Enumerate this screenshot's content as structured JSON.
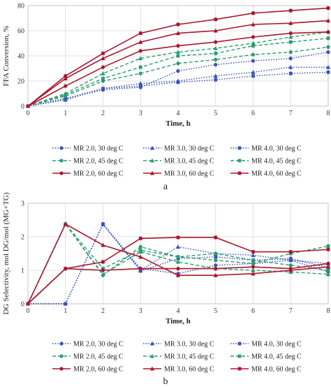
{
  "chart_data": [
    {
      "type": "line",
      "panel_label": "a",
      "xlabel": "Time, h",
      "ylabel": "FFA Conversion, %",
      "xlim": [
        0,
        8
      ],
      "ylim": [
        0,
        80
      ],
      "x": [
        0,
        1,
        2,
        3,
        4,
        5,
        6,
        7,
        8
      ],
      "x_ticks": [
        "0",
        "1",
        "2",
        "3",
        "4",
        "5",
        "6",
        "7",
        "8"
      ],
      "y_ticks": [
        "0",
        "20",
        "40",
        "60",
        "80"
      ],
      "y_tick_values": [
        0,
        20,
        40,
        60,
        80
      ],
      "grid": "horizontal and vertical",
      "legend": "bottom",
      "series": [
        {
          "name": "MR 2.0, 30 deg C",
          "color": "#3a53c0",
          "dash": "dotted",
          "marker": "circle",
          "values": [
            0,
            6,
            13,
            15,
            28,
            33,
            36,
            38,
            43
          ]
        },
        {
          "name": "MR 3.0, 30 deg C",
          "color": "#3a53c0",
          "dash": "dotted",
          "marker": "triangle",
          "values": [
            0,
            5,
            14,
            18,
            20,
            24,
            27,
            31,
            31
          ]
        },
        {
          "name": "MR 4.0, 30 deg C",
          "color": "#3a53c0",
          "dash": "dotted",
          "marker": "square",
          "values": [
            0,
            6,
            14,
            16,
            19,
            21,
            24,
            26,
            27
          ]
        },
        {
          "name": "MR 2.0, 45 deg C",
          "color": "#2a9d6f",
          "dash": "dashed",
          "marker": "circle",
          "values": [
            0,
            8,
            20,
            26,
            34,
            37,
            41,
            43,
            47
          ]
        },
        {
          "name": "MR 3.0, 45 deg C",
          "color": "#2a9d6f",
          "dash": "dashed",
          "marker": "triangle",
          "values": [
            0,
            10,
            26,
            38,
            43,
            46,
            50,
            55,
            59
          ]
        },
        {
          "name": "MR 4.0, 45 deg C",
          "color": "#2a9d6f",
          "dash": "dashed",
          "marker": "square",
          "values": [
            0,
            9,
            22,
            31,
            40,
            42,
            48,
            51,
            54
          ]
        },
        {
          "name": "MR 2.0, 60 deg C",
          "color": "#a8182c",
          "dash": "solid",
          "marker": "circle",
          "values": [
            0,
            16,
            31,
            44,
            48,
            51,
            55,
            58,
            59
          ]
        },
        {
          "name": "MR 3.0, 60 deg C",
          "color": "#a8182c",
          "dash": "solid",
          "marker": "triangle",
          "values": [
            0,
            22,
            38,
            51,
            58,
            60,
            65,
            66,
            68
          ]
        },
        {
          "name": "MR 4.0, 60 deg C",
          "color": "#a8182c",
          "dash": "solid",
          "marker": "square",
          "values": [
            0,
            24,
            42,
            58,
            65,
            69,
            74,
            76,
            78
          ]
        }
      ]
    },
    {
      "type": "line",
      "panel_label": "b",
      "xlabel": "Time, h",
      "ylabel": "DG Selectivity, mol DG/mol (MG+TG)",
      "xlim": [
        0,
        8
      ],
      "ylim": [
        0,
        3
      ],
      "x": [
        0,
        1,
        2,
        3,
        4,
        5,
        6,
        7,
        8
      ],
      "x_ticks": [
        "0",
        "1",
        "2",
        "3",
        "4",
        "5",
        "6",
        "7",
        "8"
      ],
      "y_ticks": [
        "0",
        "1",
        "2",
        "3"
      ],
      "y_tick_values": [
        0,
        1,
        2,
        3
      ],
      "grid": "horizontal and vertical",
      "legend": "bottom",
      "series": [
        {
          "name": "MR 2.0, 30 deg C",
          "color": "#3a53c0",
          "dash": "dotted",
          "marker": "circle",
          "values": [
            0,
            0,
            2.38,
            1.05,
            0.9,
            1.15,
            1.2,
            1.3,
            0.95
          ]
        },
        {
          "name": "MR 3.0, 30 deg C",
          "color": "#3a53c0",
          "dash": "dotted",
          "marker": "triangle",
          "values": [
            0,
            0,
            2.37,
            1.0,
            1.7,
            1.5,
            1.45,
            1.3,
            1.2
          ]
        },
        {
          "name": "MR 4.0, 30 deg C",
          "color": "#3a53c0",
          "dash": "dotted",
          "marker": "square",
          "values": [
            0,
            0,
            2.38,
            0.98,
            1.35,
            1.4,
            1.3,
            1.35,
            1.08
          ]
        },
        {
          "name": "MR 2.0, 45 deg C",
          "color": "#2a9d6f",
          "dash": "dashed",
          "marker": "circle",
          "values": [
            0,
            2.38,
            0.85,
            1.7,
            1.4,
            1.5,
            1.3,
            1.15,
            1.0
          ]
        },
        {
          "name": "MR 3.0, 45 deg C",
          "color": "#2a9d6f",
          "dash": "dashed",
          "marker": "triangle",
          "values": [
            0,
            2.38,
            0.88,
            1.55,
            1.25,
            1.05,
            1.0,
            0.95,
            0.88
          ]
        },
        {
          "name": "MR 4.0, 45 deg C",
          "color": "#2a9d6f",
          "dash": "dashed",
          "marker": "square",
          "values": [
            0,
            2.38,
            1.05,
            1.6,
            1.4,
            1.3,
            1.2,
            1.5,
            1.72
          ]
        },
        {
          "name": "MR 2.0, 60 deg C",
          "color": "#a8182c",
          "dash": "solid",
          "marker": "circle",
          "values": [
            0,
            1.05,
            1.0,
            1.05,
            1.05,
            1.05,
            1.1,
            1.05,
            1.2
          ]
        },
        {
          "name": "MR 3.0, 60 deg C",
          "color": "#a8182c",
          "dash": "solid",
          "marker": "triangle",
          "values": [
            0,
            2.38,
            1.75,
            1.4,
            0.85,
            0.85,
            0.9,
            1.0,
            1.1
          ]
        },
        {
          "name": "MR 4.0, 60 deg C",
          "color": "#a8182c",
          "dash": "solid",
          "marker": "square",
          "values": [
            0,
            1.05,
            1.25,
            1.95,
            1.98,
            1.98,
            1.55,
            1.55,
            1.62
          ]
        }
      ]
    }
  ]
}
